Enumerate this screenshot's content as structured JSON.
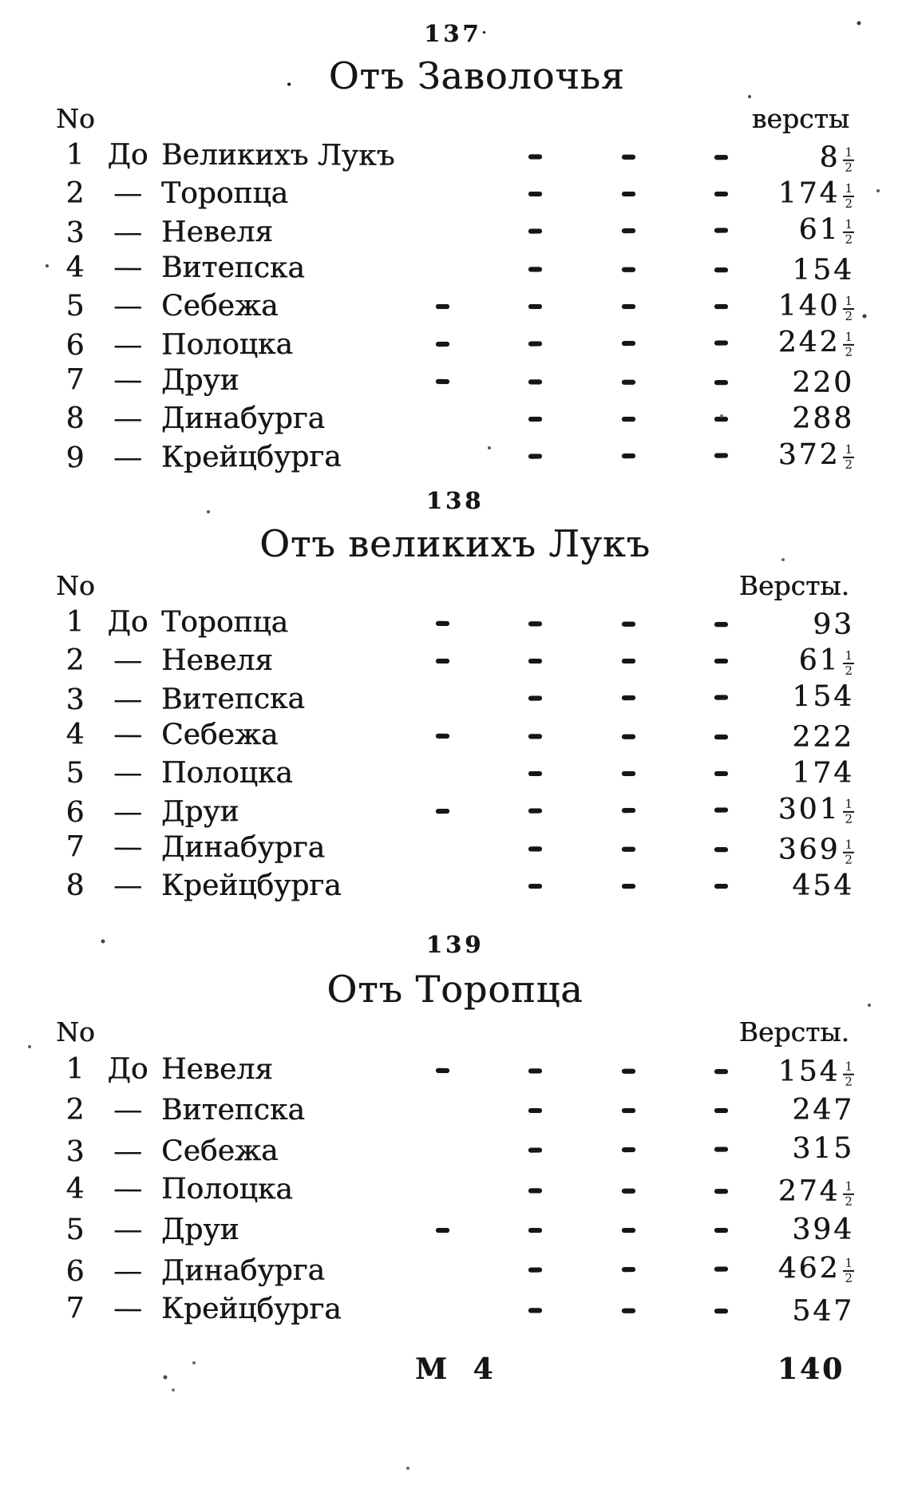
{
  "colors": {
    "ink": "#161616",
    "paper": "#ffffff"
  },
  "sections": [
    {
      "number": "137",
      "number_mark": "·",
      "title_lead": ".",
      "title": "Отъ Заволочья",
      "col_no": "No",
      "col_versts": "версты",
      "rows": [
        {
          "no": "1",
          "pre": "До",
          "name": "Великихъ Лукъ",
          "dashes": 3,
          "value": "8",
          "frac": "1/2"
        },
        {
          "no": "2",
          "pre": "—",
          "name": "Торопца",
          "dashes": 3,
          "value": "174",
          "frac": "1/2"
        },
        {
          "no": "3",
          "pre": "—",
          "name": "Невеля",
          "dashes": 3,
          "value": "61",
          "frac": "1/2"
        },
        {
          "no": "4",
          "pre": "—",
          "name": "Витепска",
          "dashes": 3,
          "value": "154"
        },
        {
          "no": "5",
          "pre": "—",
          "name": "Себежа",
          "dashes": 4,
          "value": "140",
          "frac": "1/2"
        },
        {
          "no": "6",
          "pre": "—",
          "name": "Полоцка",
          "dashes": 4,
          "value": "242",
          "frac": "1/2"
        },
        {
          "no": "7",
          "pre": "—",
          "name": "Друи",
          "dashes": 4,
          "value": "220"
        },
        {
          "no": "8",
          "pre": "—",
          "name": "Динабурга",
          "dashes": 3,
          "value": "288"
        },
        {
          "no": "9",
          "pre": "—",
          "name": "Крейцбурга",
          "dashes": 3,
          "value": "372",
          "frac": "1/2"
        }
      ]
    },
    {
      "number": "138",
      "title": "Отъ великихъ Лукъ",
      "col_no": "No",
      "col_versts": "Версты.",
      "rows": [
        {
          "no": "1",
          "pre": "До",
          "name": "Торопца",
          "dashes": 4,
          "value": "93"
        },
        {
          "no": "2",
          "pre": "—",
          "name": "Невеля",
          "dashes": 4,
          "value": "61",
          "frac": "1/2"
        },
        {
          "no": "3",
          "pre": "—",
          "name": "Витепска",
          "dashes": 3,
          "value": "154"
        },
        {
          "no": "4",
          "pre": "—",
          "name": "Себежа",
          "dashes": 4,
          "value": "222"
        },
        {
          "no": "5",
          "pre": "—",
          "name": "Полоцка",
          "dashes": 3,
          "value": "174"
        },
        {
          "no": "6",
          "pre": "—",
          "name": "Друи",
          "dashes": 4,
          "value": "301",
          "frac": "1/2"
        },
        {
          "no": "7",
          "pre": "—",
          "name": "Динабурга",
          "dashes": 3,
          "value": "369",
          "frac": "1/2"
        },
        {
          "no": "8",
          "pre": "—",
          "name": "Крейцбурга",
          "dashes": 3,
          "value": "454"
        }
      ]
    },
    {
      "number": "139",
      "title": "Отъ Торопца",
      "col_no": "No",
      "col_versts": "Версты.",
      "rows": [
        {
          "no": "1",
          "pre": "До",
          "name": "Невеля",
          "dashes": 4,
          "value": "154",
          "frac": "1/2"
        },
        {
          "no": "2",
          "pre": "—",
          "name": "Витепска",
          "dashes": 3,
          "value": "247"
        },
        {
          "no": "3",
          "pre": "—",
          "name": "Себежа",
          "dashes": 3,
          "value": "315"
        },
        {
          "no": "4",
          "pre": "—",
          "name": "Полоцка",
          "dashes": 3,
          "value": "274",
          "frac": "1/2"
        },
        {
          "no": "5",
          "pre": "—",
          "name": "Друи",
          "dashes": 4,
          "value": "394"
        },
        {
          "no": "6",
          "pre": "—",
          "name": "Динабурга",
          "dashes": 3,
          "value": "462",
          "frac": "1/2"
        },
        {
          "no": "7",
          "pre": "—",
          "name": "Крейцбурга",
          "dashes": 3,
          "value": "547"
        }
      ]
    }
  ],
  "footer": {
    "signature": "М 4",
    "next_number": "140"
  }
}
